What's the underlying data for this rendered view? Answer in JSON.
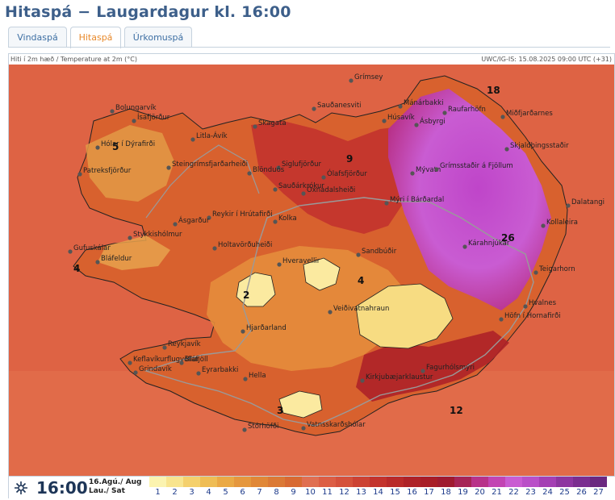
{
  "title": "Hitaspá − Laugardagur kl. 16:00",
  "tabs": [
    {
      "label": "Vindaspá",
      "active": false
    },
    {
      "label": "Hitaspá",
      "active": true
    },
    {
      "label": "Úrkomuspá",
      "active": false
    }
  ],
  "info": {
    "left": "Hiti í 2m hæð / Temperature at 2m (°C)",
    "right": "UWC/IG-IS: 15.08.2025 09:00 UTC (+31)"
  },
  "legend": {
    "time": "16:00",
    "date_line1": "16.Agú./ Aug",
    "date_line2": "Lau./ Sat",
    "scale": [
      {
        "value": "1",
        "color": "#fbf3b0"
      },
      {
        "value": "2",
        "color": "#f8e48f"
      },
      {
        "value": "3",
        "color": "#f4d06d"
      },
      {
        "value": "4",
        "color": "#efbd55"
      },
      {
        "value": "5",
        "color": "#eaa946"
      },
      {
        "value": "6",
        "color": "#e5973e"
      },
      {
        "value": "7",
        "color": "#e08738"
      },
      {
        "value": "8",
        "color": "#db7936"
      },
      {
        "value": "9",
        "color": "#d86a33"
      },
      {
        "value": "10",
        "color": "#e06f52"
      },
      {
        "value": "11",
        "color": "#dc5e45"
      },
      {
        "value": "12",
        "color": "#d5513c"
      },
      {
        "value": "13",
        "color": "#cc4234"
      },
      {
        "value": "14",
        "color": "#c3332d"
      },
      {
        "value": "15",
        "color": "#b92a2a"
      },
      {
        "value": "16",
        "color": "#ae2228"
      },
      {
        "value": "17",
        "color": "#a81d28"
      },
      {
        "value": "18",
        "color": "#9f1a30"
      },
      {
        "value": "19",
        "color": "#a62456"
      },
      {
        "value": "20",
        "color": "#b8328a"
      },
      {
        "value": "21",
        "color": "#c244b3"
      },
      {
        "value": "22",
        "color": "#c95cd2"
      },
      {
        "value": "23",
        "color": "#b94fc8"
      },
      {
        "value": "24",
        "color": "#a43fb4"
      },
      {
        "value": "25",
        "color": "#8d35a0"
      },
      {
        "value": "26",
        "color": "#7a2d90"
      },
      {
        "value": "27",
        "color": "#6b2880"
      }
    ]
  },
  "map": {
    "places": [
      "Grímsey",
      "Bolungarvík",
      "Ísafjörður",
      "Hólar í Dýrafirði",
      "Patreksfjörður",
      "Steingrímsfjarðarheiði",
      "Litla-Ávík",
      "Skagatá",
      "Siglufjörður",
      "Sauðanesviti",
      "Mánárbakki",
      "Raufarhöfn",
      "Húsavík",
      "Ásbyrgi",
      "Miðfjarðarnes",
      "Skjaldþingsstaðir",
      "Blönduós",
      "Ólafsfjörður",
      "Mývatn",
      "Grímsstaðir á Fjöllum",
      "Dalatangi",
      "Öxnadalsheiði",
      "Sauðárkrókur",
      "Mýri í Bárðardal",
      "Kolka",
      "Reykir í Hrútafirði",
      "Ásgarður",
      "Stykkishólmur",
      "Kollaleira",
      "Kárahnjúkar",
      "Holtavörðuheiði",
      "Gufuskálar",
      "Bláfeldur",
      "Hveravellir",
      "Sandbúðir",
      "Teigarhorn",
      "Hvalnes",
      "Veiðivatnahraun",
      "Höfn í Hornafirði",
      "Hjarðarland",
      "Reykjavík",
      "Keflavíkurflugvöllur",
      "Bláfjöll",
      "Grindavík",
      "Eyrarbakki",
      "Hella",
      "Kirkjubæjarklaustur",
      "Fagurhólsmýri",
      "Stórhöfði",
      "Vatnsskarðshólar"
    ],
    "temps": [
      "5",
      "18",
      "9",
      "4",
      "2",
      "4",
      "26",
      "3",
      "12"
    ]
  }
}
